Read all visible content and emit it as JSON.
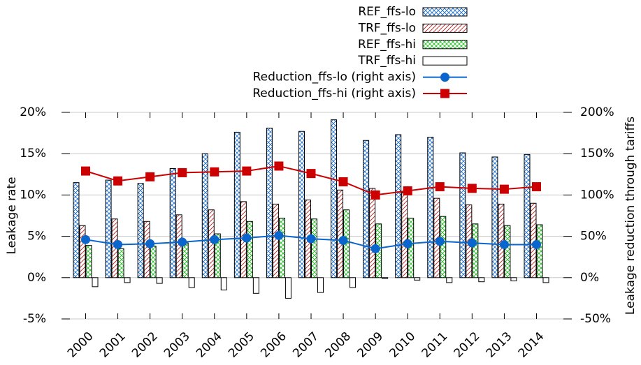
{
  "chart_data": {
    "type": "bar",
    "ylabel": "Leakage rate",
    "y2label": "Leakage reduction through tariffs",
    "categories": [
      "2000",
      "2001",
      "2002",
      "2003",
      "2004",
      "2005",
      "2006",
      "2007",
      "2008",
      "2009",
      "2010",
      "2011",
      "2012",
      "2013",
      "2014"
    ],
    "ylim": [
      -5,
      20
    ],
    "yticks": [
      {
        "value": -5,
        "label": "-5%"
      },
      {
        "value": 0,
        "label": "0%"
      },
      {
        "value": 5,
        "label": "5%"
      },
      {
        "value": 10,
        "label": "10%"
      },
      {
        "value": 15,
        "label": "15%"
      },
      {
        "value": 20,
        "label": "20%"
      }
    ],
    "y2lim": [
      -50,
      200
    ],
    "y2ticks": [
      {
        "value": -50,
        "label": "-50%"
      },
      {
        "value": 0,
        "label": "0%"
      },
      {
        "value": 50,
        "label": "50%"
      },
      {
        "value": 100,
        "label": "100%"
      },
      {
        "value": 150,
        "label": "150%"
      },
      {
        "value": 200,
        "label": "200%"
      }
    ],
    "grid": true,
    "legend": "top-right",
    "series": [
      {
        "name": "REF_ffs-lo",
        "type": "bar",
        "pattern": "crosshatch",
        "color": "#1f6fd0",
        "values": [
          11.5,
          11.8,
          11.4,
          13.2,
          15.0,
          17.6,
          18.1,
          17.7,
          19.1,
          16.6,
          17.3,
          17.0,
          15.1,
          14.6,
          14.9
        ]
      },
      {
        "name": "TRF_ffs-lo",
        "type": "bar",
        "pattern": "diagonal",
        "color": "#b22222",
        "values": [
          6.3,
          7.1,
          6.8,
          7.6,
          8.2,
          9.2,
          8.9,
          9.4,
          10.6,
          10.8,
          10.3,
          9.6,
          8.8,
          8.9,
          9.0
        ]
      },
      {
        "name": "REF_ffs-hi",
        "type": "bar",
        "pattern": "crosshatch",
        "color": "#22bb22",
        "values": [
          3.9,
          3.5,
          3.8,
          4.2,
          5.3,
          6.8,
          7.2,
          7.1,
          8.2,
          6.5,
          7.2,
          7.4,
          6.5,
          6.3,
          6.4
        ]
      },
      {
        "name": "TRF_ffs-hi",
        "type": "bar",
        "pattern": "none",
        "color": "#000000",
        "values": [
          -1.1,
          -0.6,
          -0.7,
          -1.2,
          -1.5,
          -1.9,
          -2.5,
          -1.8,
          -1.2,
          -0.1,
          -0.3,
          -0.6,
          -0.5,
          -0.4,
          -0.6
        ]
      },
      {
        "name": "Reduction_ffs-lo (right axis)",
        "type": "line",
        "marker": "circle",
        "axis": "y2",
        "color": "#0a66cc",
        "values": [
          46,
          40,
          41,
          43,
          46,
          48,
          51,
          47,
          45,
          35,
          41,
          44,
          42,
          40,
          40
        ]
      },
      {
        "name": "Reduction_ffs-hi (right axis)",
        "type": "line",
        "marker": "square",
        "axis": "y2",
        "color": "#cc0000",
        "values": [
          129,
          117,
          122,
          127,
          128,
          129,
          135,
          126,
          116,
          100,
          105,
          110,
          108,
          107,
          110
        ]
      }
    ]
  }
}
